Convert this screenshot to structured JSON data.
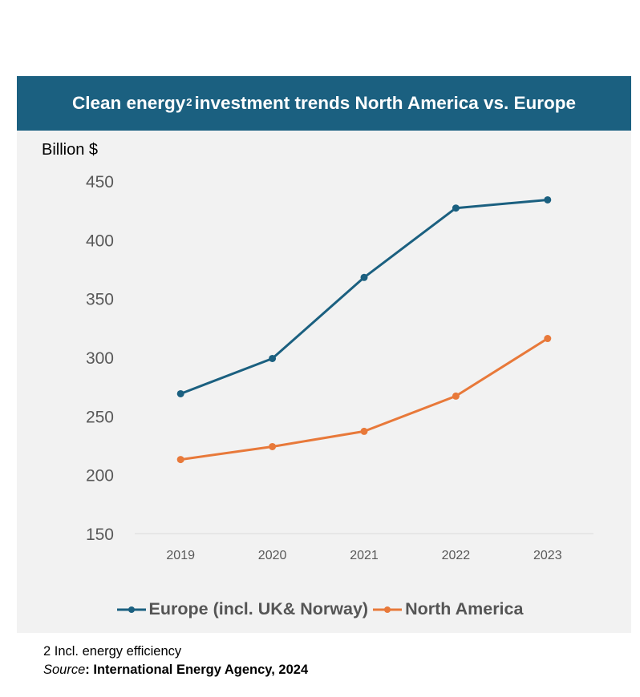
{
  "title": {
    "text_before": "Clean energy",
    "superscript": "2",
    "text_after": " investment trends North America vs. Europe"
  },
  "unit_label": "Billion $",
  "colors": {
    "title_bg": "#1b6080",
    "europe": "#1b6080",
    "north_america": "#e8793a",
    "panel_bg": "#f2f2f2"
  },
  "chart_data": {
    "type": "line",
    "title": "Clean energy2 investment trends North America vs. Europe",
    "ylabel": "Billion $",
    "xlabel": "",
    "categories": [
      "2019",
      "2020",
      "2021",
      "2022",
      "2023"
    ],
    "yticks": [
      "150",
      "200",
      "250",
      "300",
      "350",
      "400",
      "450"
    ],
    "ylim": [
      150,
      450
    ],
    "grid": false,
    "legend_position": "bottom",
    "series": [
      {
        "name": "Europe (incl. UK& Norway)",
        "color": "#1b6080",
        "values": [
          269,
          299,
          368,
          427,
          434
        ]
      },
      {
        "name": "North America",
        "color": "#e8793a",
        "values": [
          213,
          224,
          237,
          267,
          316
        ]
      }
    ]
  },
  "footnote": "2 Incl. energy efficiency",
  "source": {
    "label": "Source",
    "text": ": International Energy Agency, 2024"
  }
}
